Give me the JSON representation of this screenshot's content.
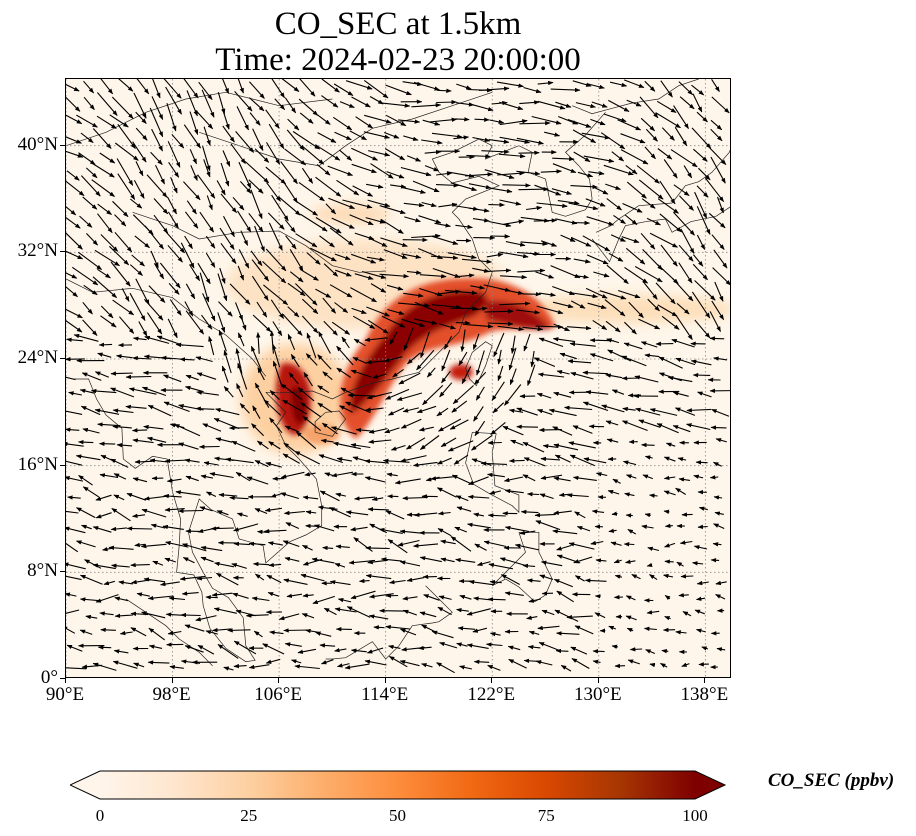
{
  "title": {
    "line1": "CO_SEC at 1.5km",
    "line2": "Time: 2024-02-23 20:00:00"
  },
  "map": {
    "lon_range": [
      90,
      140
    ],
    "lat_range": [
      0,
      45
    ],
    "lat_ticks": [
      {
        "value": 0,
        "label": "0°"
      },
      {
        "value": 8,
        "label": "8°N"
      },
      {
        "value": 16,
        "label": "16°N"
      },
      {
        "value": 24,
        "label": "24°N"
      },
      {
        "value": 32,
        "label": "32°N"
      },
      {
        "value": 40,
        "label": "40°N"
      }
    ],
    "lon_ticks": [
      {
        "value": 90,
        "label": "90°E"
      },
      {
        "value": 98,
        "label": "98°E"
      },
      {
        "value": 106,
        "label": "106°E"
      },
      {
        "value": 114,
        "label": "114°E"
      },
      {
        "value": 122,
        "label": "122°E"
      },
      {
        "value": 130,
        "label": "130°E"
      },
      {
        "value": 138,
        "label": "138°E"
      }
    ],
    "gridlines": "dotted",
    "plume_color_scale": [
      "#fff5eb",
      "#fdd9a8",
      "#fc9f5e",
      "#e3502c",
      "#b7150b",
      "#7f0000"
    ]
  },
  "colorbar": {
    "label": "CO_SEC (ppbv)",
    "min": 0,
    "max": 100,
    "ticks": [
      {
        "value": 0,
        "label": "0"
      },
      {
        "value": 25,
        "label": "25"
      },
      {
        "value": 50,
        "label": "50"
      },
      {
        "value": 75,
        "label": "75"
      },
      {
        "value": 100,
        "label": "100"
      }
    ],
    "colors": [
      "#fff5eb",
      "#fee6ce",
      "#fdd0a2",
      "#fdae6b",
      "#fd8d3c",
      "#f16913",
      "#d94801",
      "#a63603",
      "#7f0000"
    ]
  }
}
